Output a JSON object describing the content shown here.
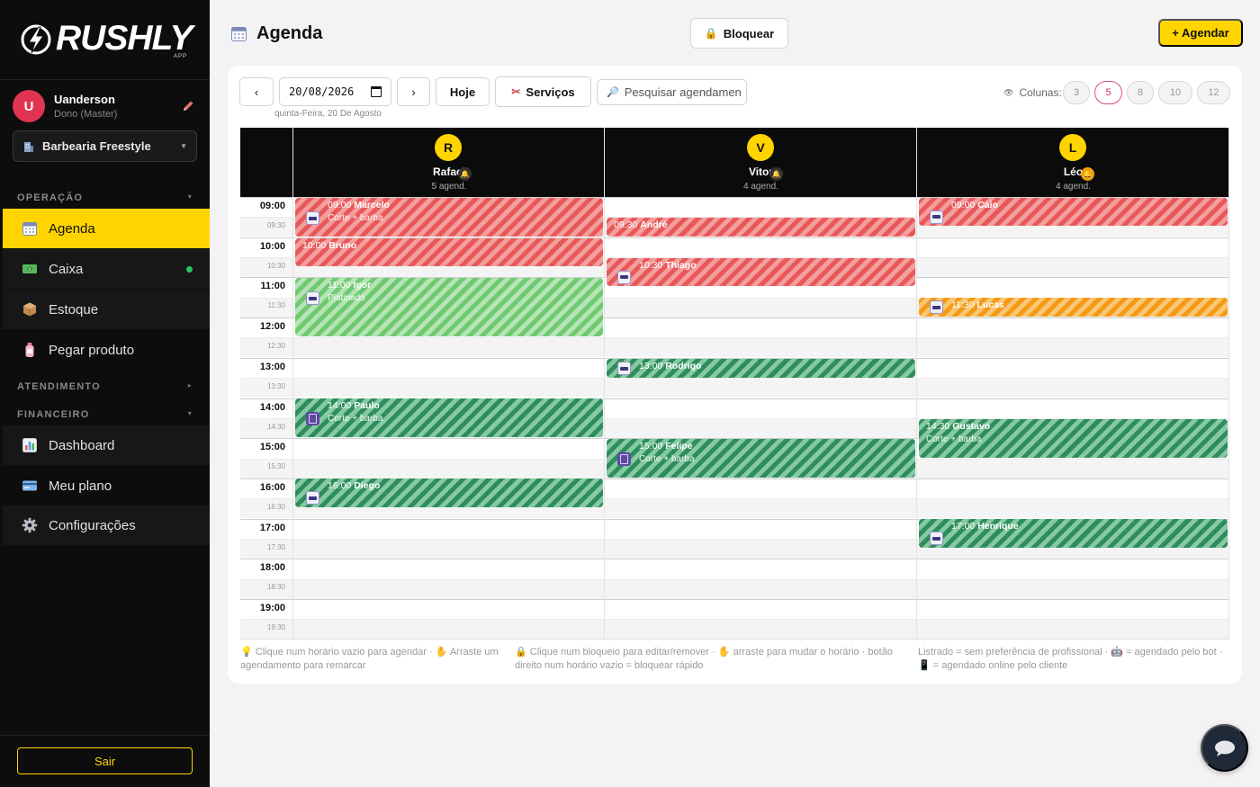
{
  "brand": {
    "logo_text": "RUSHLY",
    "logo_sub": "APP"
  },
  "user": {
    "initial": "U",
    "name": "Uanderson",
    "role": "Dono (Master)"
  },
  "shop": {
    "selected": "Barbearia Freestyle"
  },
  "sections": {
    "operacao": "OPERAÇÃO",
    "atendimento": "ATENDIMENTO",
    "financeiro": "FINANCEIRO"
  },
  "nav": {
    "agenda": "Agenda",
    "caixa": "Caixa",
    "estoque": "Estoque",
    "pegar_produto": "Pegar produto",
    "dashboard": "Dashboard",
    "meu_plano": "Meu plano",
    "configuracoes": "Configurações"
  },
  "logout_label": "Sair",
  "page": {
    "title": "Agenda",
    "block_label": "Bloquear",
    "book_label": "+ Agendar"
  },
  "toolbar": {
    "prev": "‹",
    "next": "›",
    "date_value": "20/08/2026",
    "date_caption": "quinta-Feira, 20 De Agosto",
    "today": "Hoje",
    "services": "Serviços",
    "search_placeholder": "Pesquisar agendamen",
    "columns_label": "Colunas:",
    "column_options": [
      "3",
      "5",
      "8",
      "10",
      "12"
    ],
    "column_selected": "5"
  },
  "professionals": [
    {
      "initial": "R",
      "name": "Rafael",
      "count": "5 agend.",
      "badge": "🔔"
    },
    {
      "initial": "V",
      "name": "Vitor",
      "count": "4 agend.",
      "badge": "🔔"
    },
    {
      "initial": "L",
      "name": "Léo",
      "count": "4 agend.",
      "badge": "🔔"
    }
  ],
  "times": {
    "hours": [
      "09:00",
      "10:00",
      "11:00",
      "12:00",
      "13:00",
      "14:00",
      "15:00",
      "16:00",
      "17:00",
      "18:00",
      "19:00"
    ],
    "halves": [
      "09:30",
      "10:30",
      "11:30",
      "12:30",
      "13:30",
      "14:30",
      "15:30",
      "16:30",
      "17:30",
      "18:30",
      "19:30"
    ]
  },
  "appointments": [
    {
      "time": "09:00",
      "name": "Marcelo",
      "service": "Corte + barba",
      "icon": "bot-icon"
    },
    {
      "time": "10:00",
      "name": "Bruno",
      "service": "",
      "icon": ""
    },
    {
      "time": "11:00",
      "name": "Igor",
      "service": "Platinado",
      "icon": "bot-icon"
    },
    {
      "time": "14:00",
      "name": "Paulo",
      "service": "Corte + barba",
      "icon": "phone-icon"
    },
    {
      "time": "16:00",
      "name": "Diego",
      "service": "",
      "icon": "bot-icon"
    },
    {
      "time": "09:30",
      "name": "André",
      "service": "",
      "icon": ""
    },
    {
      "time": "10:30",
      "name": "Thiago",
      "service": "",
      "icon": "bot-icon"
    },
    {
      "time": "13:00",
      "name": "Rodrigo",
      "service": "",
      "icon": "bot-icon"
    },
    {
      "time": "15:00",
      "name": "Felipe",
      "service": "Corte + barba",
      "icon": "phone-icon"
    },
    {
      "time": "09:00",
      "name": "Caio",
      "service": "",
      "icon": "bot-icon"
    },
    {
      "time": "11:30",
      "name": "Lucas",
      "service": "",
      "icon": "bot-icon"
    },
    {
      "time": "14:30",
      "name": "Gustavo",
      "service": "Corte + barba",
      "icon": ""
    },
    {
      "time": "17:00",
      "name": "Henrique",
      "service": "",
      "icon": "bot-icon"
    }
  ],
  "appointment_colors": {
    "red": "#e85858",
    "green": "#2e8d5c",
    "lightgreen": "#6fca6f",
    "orange": "#f59a16"
  },
  "hints": {
    "h1": "💡 Clique num horário vazio para agendar · ✋ Arraste um agendamento para remarcar",
    "h2": "🔒 Clique num bloqueio para editar/remover · ✋ arraste para mudar o horário · botão direito num horário vazio = bloquear rápido",
    "h3": "Listrado = sem preferência de profissional · 🤖 = agendado pelo bot · 📱 = agendado online pelo cliente"
  },
  "accent_color": "#ffd400"
}
